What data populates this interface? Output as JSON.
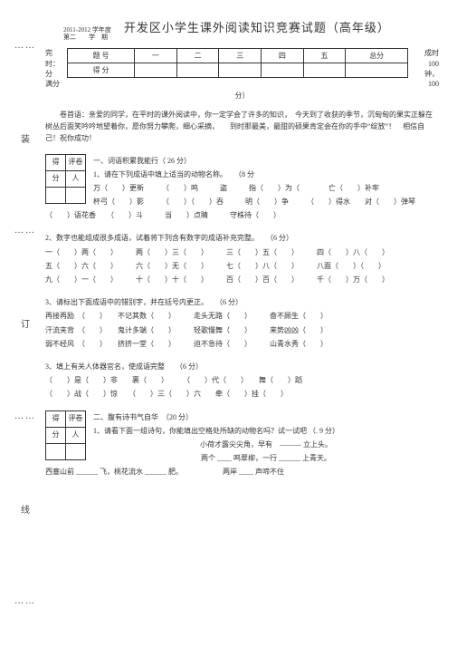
{
  "margin": {
    "dot": "……",
    "zhuang": "装",
    "ding": "订",
    "xian": "线"
  },
  "header": {
    "year_line1": "2011-2012 学年度",
    "year_line2": "第二　　学　期",
    "title": "开发区小学生课外阅读知识竞赛试题（高年级）"
  },
  "score": {
    "left1": "完\n时：",
    "left2": "分",
    "left3": "满分",
    "row1": [
      "题 号",
      "一",
      "二",
      "三",
      "四",
      "五",
      "总分"
    ],
    "row2_label": "得 分",
    "right1": "成时\n100",
    "right2": "钟，\n100",
    "caption": "分）"
  },
  "intro": "卷首语：亲爱的同学，在平时的课外阅读中，你一定学会了许多的知识，　今天到了收获的季节，沉甸甸的果实正躲在树丛后面笑吟吟地望着你，愿你努力攀爬，细心采摘，　　到时那最美，最甜的硕果肯定会在你的手中“绽放”！　相信自己！祝你成功！",
  "s1": {
    "title": "一、词语积累我能行（ 26 分）",
    "q1": "1、请在下列成语中填上适当的动物名称。　　（8 分",
    "l1": "万（　　）更新　　　（　　）鸣　　　盗　　　指（　　）为（　　　　亡（　　）补牢",
    "l2": "杯弓（　　）影　　　（　　）（　　）吞　　　明（　　）争　　　（　　）得水　　对（　　）弹琴",
    "l3": "（　　）语花香　　（　　）斗　　　当　　）点睛　　　守株待（　　）"
  },
  "s2": {
    "title": "2、数字也能组成很多成语，试着将下列含有数字的成语补充完整。　　（6 分）",
    "l1": "一（　　）两（　　）　　　两（　　）三（　　）　　　三（　　）五（　　）　　　四（　　）八（　　）",
    "l2": "五（　　）六（　　）　　　六（　　）无（　　）　　　七（　　）八（　　）　　　八面（　　）（　　）",
    "l3": "九（　　）一（　　）　　　十（　　）十（　　）　　　百（　　）百（　　）　　　千（　　）万（　　）"
  },
  "s3": {
    "title": "3、请标出下面成语中的错别字，并在括号内更正。　　（6 分）",
    "l1": "再接再励　（　　）　　不记其数（　　）　　　走头无路（　　）　　　奋不顾生（　　）",
    "l2": "汗流夹背　（　　）　　鬼计多端（　　）　　　轻歌慢舞（　　）　　　来势凶凶（　　）",
    "l3": "弱不经风　（　　）　　挤挤一堂（　　）　　　迫不急待（　　）　　　山青水秀（　　）"
  },
  "s4": {
    "title": "3、填上有关人体器官名，使成语完整　　（6 分）",
    "l1": "（　　）是（　　）非　　裹（　　）　　　（　　）代（　　）　　舞（　　）蹈",
    "l2": "（　　）战（　　）惊　　（　　）三（　　）六　　牵（　　）挂（　　）"
  },
  "s5": {
    "title": "二、腹有诗书气自华　（20 分）",
    "q1": "1、请看下面一组诗句，你能填出空格处所缺的动物名吗？试一试吧 （. 9 分）",
    "l1": "小荷才露尖尖角，早有　——— 立上头。",
    "l2": "两个 ____ 鸣翠柳，一行 ______ 上青天。",
    "l3": "西塞山前 ______ 飞，桃花流水 ______ 肥。　　　　　　两岸 ____ 声啼不住"
  },
  "minitable": {
    "c1": "得",
    "c2": "评卷",
    "c3": "分",
    "c4": "人"
  }
}
